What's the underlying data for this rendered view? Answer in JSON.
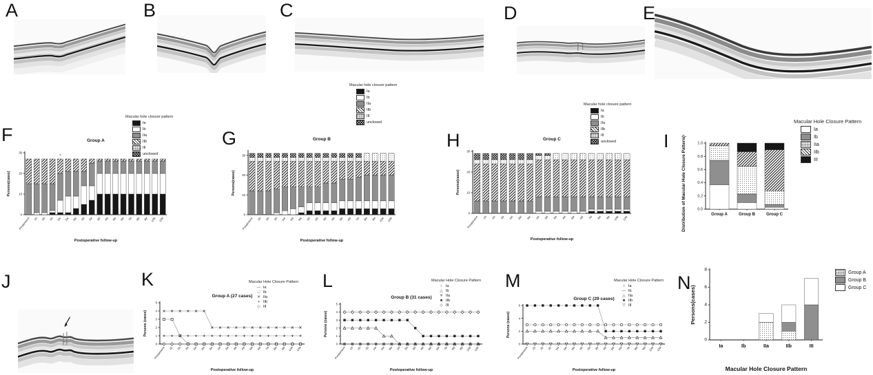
{
  "figure": {
    "background": "#ffffff"
  },
  "panels": {
    "A": {
      "letter": "A"
    },
    "B": {
      "letter": "B"
    },
    "C": {
      "letter": "C"
    },
    "D": {
      "letter": "D"
    },
    "E": {
      "letter": "E"
    },
    "F": {
      "letter": "F"
    },
    "G": {
      "letter": "G"
    },
    "H": {
      "letter": "H"
    },
    "I": {
      "letter": "I"
    },
    "J": {
      "letter": "J"
    },
    "K": {
      "letter": "K"
    },
    "L": {
      "letter": "L"
    },
    "M": {
      "letter": "M"
    },
    "N": {
      "letter": "N"
    }
  },
  "followup_categories": [
    "Preoperative",
    "1D",
    "2D",
    "3D",
    "1W",
    "2W",
    "3W",
    "1M",
    "2M",
    "3M",
    "4M",
    "5M",
    "6M",
    "7M",
    "8M",
    "9M",
    "10M",
    "12M"
  ],
  "colors": {
    "black": "#161616",
    "gray": "#8f8f8f",
    "hatch_line": "#1a1a1a",
    "axis": "#111111"
  },
  "chart_data": [
    {
      "panel": "F",
      "type": "bar",
      "stacked": true,
      "title": "Group A",
      "ylabel": "Persons(cases)",
      "xlabel": "Postoperative follow-up",
      "legend_title": "Macular hole closure pattern",
      "ylim": [
        0,
        30
      ],
      "yticks": [
        0,
        10,
        20,
        30
      ],
      "categories_ref": "followup",
      "annotations": [
        {
          "text": "*",
          "x_index": 4
        }
      ],
      "series": [
        {
          "name": "Ia",
          "pattern": "black",
          "values": [
            0,
            0,
            0,
            1,
            1,
            1,
            3,
            5,
            7,
            10,
            10,
            10,
            10,
            10,
            10,
            10,
            10,
            10
          ]
        },
        {
          "name": "Ib",
          "pattern": "white",
          "values": [
            0,
            1,
            1,
            1,
            6,
            8,
            6,
            9,
            7,
            10,
            10,
            10,
            10,
            10,
            10,
            10,
            10,
            10
          ]
        },
        {
          "name": "IIa",
          "pattern": "gray",
          "values": [
            15,
            14,
            14,
            13,
            13,
            12,
            12,
            7,
            11,
            6,
            6,
            6,
            6,
            6,
            6,
            6,
            6,
            6
          ]
        },
        {
          "name": "IIb",
          "pattern": "hatch",
          "values": [
            12,
            12,
            12,
            12,
            7,
            6,
            6,
            6,
            2,
            1,
            1,
            1,
            1,
            1,
            1,
            1,
            1,
            1
          ]
        },
        {
          "name": "III",
          "pattern": "dots",
          "values": [
            0,
            0,
            0,
            0,
            0,
            0,
            0,
            0,
            0,
            0,
            0,
            0,
            0,
            0,
            0,
            0,
            0,
            0
          ]
        },
        {
          "name": "unclosed",
          "pattern": "crosshatch",
          "values": [
            0,
            0,
            0,
            0,
            0,
            0,
            0,
            0,
            0,
            0,
            0,
            0,
            0,
            0,
            0,
            0,
            0,
            0
          ]
        }
      ]
    },
    {
      "panel": "G",
      "type": "bar",
      "stacked": true,
      "title": "Group B",
      "ylabel": "Persons(cases)",
      "xlabel": "Postoperative follow-up",
      "legend_title": "Macular hole closure pattern",
      "ylim": [
        0,
        32
      ],
      "yticks": [
        0,
        10,
        20,
        30
      ],
      "categories_ref": "followup",
      "series": [
        {
          "name": "Ia",
          "pattern": "black",
          "values": [
            0,
            0,
            0,
            0,
            0,
            0,
            1,
            2,
            2,
            2,
            2,
            3,
            3,
            3,
            3,
            3,
            3,
            3
          ]
        },
        {
          "name": "Ib",
          "pattern": "white",
          "values": [
            0,
            0,
            0,
            1,
            2,
            3,
            3,
            4,
            4,
            4,
            4,
            4,
            4,
            4,
            4,
            4,
            4,
            4
          ]
        },
        {
          "name": "IIa",
          "pattern": "gray",
          "values": [
            12,
            12,
            12,
            12,
            12,
            11,
            10,
            8,
            8,
            10,
            10,
            11,
            11,
            12,
            13,
            13,
            13,
            13
          ]
        },
        {
          "name": "IIb",
          "pattern": "hatch",
          "values": [
            15,
            15,
            15,
            14,
            13,
            13,
            13,
            13,
            13,
            11,
            11,
            9,
            9,
            8,
            7,
            7,
            7,
            7
          ]
        },
        {
          "name": "III",
          "pattern": "dots",
          "values": [
            2,
            2,
            2,
            2,
            2,
            2,
            2,
            2,
            2,
            2,
            2,
            2,
            2,
            2,
            4,
            4,
            4,
            4
          ]
        },
        {
          "name": "unclosed",
          "pattern": "crosshatch",
          "values": [
            2,
            2,
            2,
            2,
            2,
            2,
            2,
            2,
            2,
            2,
            2,
            2,
            2,
            2,
            0,
            0,
            0,
            0
          ]
        }
      ]
    },
    {
      "panel": "H",
      "type": "bar",
      "stacked": true,
      "title": "Group C",
      "ylabel": "Persons(cases)",
      "xlabel": "Postoperative follow-up",
      "legend_title": "Macular hole closure pattern",
      "ylim": [
        0,
        30
      ],
      "yticks": [
        0,
        10,
        20,
        30
      ],
      "categories_ref": "followup",
      "series": [
        {
          "name": "Ia",
          "pattern": "black",
          "values": [
            0,
            0,
            0,
            0,
            0,
            0,
            0,
            0,
            0,
            0,
            0,
            0,
            0,
            1,
            1,
            1,
            1,
            1
          ]
        },
        {
          "name": "Ib",
          "pattern": "white",
          "values": [
            0,
            0,
            0,
            0,
            0,
            0,
            0,
            1,
            1,
            1,
            1,
            1,
            1,
            1,
            1,
            1,
            1,
            1
          ]
        },
        {
          "name": "IIa",
          "pattern": "gray",
          "values": [
            6,
            6,
            6,
            6,
            6,
            6,
            6,
            7,
            7,
            7,
            7,
            7,
            7,
            6,
            6,
            6,
            6,
            6
          ]
        },
        {
          "name": "IIb",
          "pattern": "hatch",
          "values": [
            18,
            18,
            18,
            18,
            18,
            18,
            18,
            18,
            18,
            18,
            18,
            18,
            18,
            18,
            18,
            18,
            18,
            18
          ]
        },
        {
          "name": "III",
          "pattern": "dots",
          "values": [
            2,
            2,
            2,
            2,
            2,
            2,
            2,
            2,
            2,
            3,
            3,
            3,
            3,
            3,
            3,
            3,
            3,
            3
          ]
        },
        {
          "name": "unclosed",
          "pattern": "crosshatch",
          "values": [
            3,
            3,
            3,
            3,
            3,
            3,
            3,
            1,
            1,
            0,
            0,
            0,
            0,
            0,
            0,
            0,
            0,
            0
          ]
        }
      ]
    },
    {
      "panel": "I",
      "type": "bar",
      "stacked": true,
      "font_scale": 1.3,
      "x_bold": true,
      "title": "",
      "ylabel": "Distribution of Macular Hole Closure Pattern(×100%)",
      "xlabel": "",
      "legend_title": "Macular Hole Closure Pattern",
      "ylim": [
        0,
        1.0
      ],
      "yticks": [
        0.0,
        0.2,
        0.4,
        0.6,
        0.8,
        1.0
      ],
      "tick_decimals": 1,
      "categories": [
        "Group A",
        "Group B",
        "Group C"
      ],
      "series": [
        {
          "name": "Ia",
          "pattern": "white",
          "values": [
            0.37,
            0.1,
            0.03
          ]
        },
        {
          "name": "Ib",
          "pattern": "gray",
          "values": [
            0.37,
            0.13,
            0.04
          ]
        },
        {
          "name": "IIa",
          "pattern": "dots",
          "values": [
            0.22,
            0.42,
            0.21
          ]
        },
        {
          "name": "IIb",
          "pattern": "hatch",
          "values": [
            0.04,
            0.22,
            0.62
          ]
        },
        {
          "name": "III",
          "pattern": "black",
          "values": [
            0.0,
            0.13,
            0.1
          ]
        }
      ]
    },
    {
      "panel": "K",
      "type": "line",
      "title": "Group A (27 cases)",
      "ylabel": "Persons (cases)",
      "xlabel": "Postoperative follow-up",
      "legend_title": "Macular Hole Closure Pattern",
      "ylim": [
        0,
        5
      ],
      "yticks": [
        0,
        1,
        2,
        3,
        4,
        5
      ],
      "categories_ref": "followup",
      "series": [
        {
          "name": "Ia",
          "marker": "dash",
          "values": [
            0,
            0,
            0,
            0,
            0,
            0,
            0,
            0,
            0,
            0,
            0,
            0,
            0,
            0,
            0,
            0,
            0,
            0
          ]
        },
        {
          "name": "Ib",
          "marker": "square-open",
          "values": [
            3,
            3,
            1,
            0,
            0,
            0,
            0,
            0,
            0,
            0,
            0,
            0,
            0,
            0,
            0,
            0,
            0,
            0
          ]
        },
        {
          "name": "IIa",
          "marker": "x",
          "values": [
            4,
            4,
            4,
            4,
            4,
            4,
            2,
            2,
            2,
            2,
            2,
            2,
            2,
            2,
            2,
            2,
            2,
            2
          ]
        },
        {
          "name": "IIb",
          "marker": "plus",
          "values": [
            1,
            1,
            1,
            1,
            1,
            1,
            1,
            1,
            1,
            1,
            1,
            1,
            1,
            1,
            1,
            1,
            1,
            1
          ]
        },
        {
          "name": "III",
          "marker": "diamond-open",
          "values": [
            0,
            0,
            0,
            0,
            0,
            0,
            0,
            0,
            0,
            0,
            0,
            0,
            0,
            0,
            0,
            0,
            0,
            0
          ]
        }
      ]
    },
    {
      "panel": "L",
      "type": "line",
      "title": "Group B (31 cases)",
      "ylabel": "Persons (cases)",
      "xlabel": "Postoperative follow-up",
      "legend_title": "Macular Hole Closure Pattern",
      "ylim": [
        0,
        5
      ],
      "yticks": [
        0,
        1,
        2,
        3,
        4,
        5
      ],
      "categories_ref": "followup",
      "series": [
        {
          "name": "Ia",
          "marker": "circle-open",
          "values": [
            0,
            0,
            0,
            0,
            0,
            0,
            0,
            0,
            0,
            0,
            0,
            0,
            0,
            0,
            0,
            0,
            0,
            0
          ]
        },
        {
          "name": "Ib",
          "marker": "triangle-open",
          "values": [
            2,
            2,
            2,
            2,
            2,
            1,
            1,
            0,
            0,
            0,
            0,
            0,
            0,
            0,
            0,
            0,
            0,
            0
          ]
        },
        {
          "name": "IIa",
          "marker": "x",
          "values": [
            0,
            0,
            0,
            0,
            0,
            0,
            0,
            0,
            0,
            0,
            0,
            0,
            0,
            0,
            0,
            0,
            0,
            0
          ]
        },
        {
          "name": "IIb",
          "marker": "square-filled",
          "values": [
            3,
            3,
            3,
            3,
            3,
            3,
            3,
            3,
            3,
            2,
            1,
            1,
            1,
            1,
            1,
            1,
            1,
            1
          ]
        },
        {
          "name": "III",
          "marker": "diamond-open",
          "values": [
            4,
            4,
            4,
            4,
            4,
            4,
            4,
            4,
            4,
            4,
            4,
            4,
            4,
            4,
            4,
            4,
            4,
            4
          ]
        }
      ]
    },
    {
      "panel": "M",
      "type": "line",
      "title": "Group C (29 cases)",
      "ylabel": "Persons (cases)",
      "xlabel": "Postoperative follow-up",
      "legend_title": "Macular Hole Closure Pattern",
      "ylim": [
        0,
        6
      ],
      "yticks": [
        0,
        2,
        4,
        6
      ],
      "categories_ref": "followup",
      "series": [
        {
          "name": "Ia",
          "marker": "circle-open",
          "values": [
            3,
            3,
            3,
            3,
            3,
            3,
            3,
            3,
            3,
            3,
            3,
            3,
            3,
            3,
            3,
            3,
            3,
            3
          ]
        },
        {
          "name": "Ib",
          "marker": "dash",
          "values": [
            0,
            0,
            0,
            0,
            0,
            0,
            0,
            0,
            0,
            0,
            0,
            0,
            0,
            0,
            0,
            0,
            0,
            0
          ]
        },
        {
          "name": "IIa",
          "marker": "triangle-open",
          "values": [
            2,
            2,
            2,
            2,
            2,
            2,
            2,
            2,
            2,
            2,
            1,
            1,
            1,
            1,
            1,
            1,
            1,
            1
          ]
        },
        {
          "name": "IIb",
          "marker": "square-filled",
          "values": [
            6,
            6,
            6,
            6,
            6,
            6,
            6,
            6,
            6,
            6,
            2,
            2,
            2,
            2,
            2,
            2,
            2,
            2
          ]
        },
        {
          "name": "III",
          "marker": "triangle-down-open",
          "values": [
            0,
            0,
            0,
            0,
            0,
            0,
            0,
            0,
            0,
            0,
            0,
            0,
            0,
            0,
            0,
            0,
            0,
            0
          ]
        }
      ]
    },
    {
      "panel": "N",
      "type": "bar",
      "stacked": true,
      "font_scale": 1.55,
      "x_bold": true,
      "bar_frac": 0.62,
      "title": "",
      "ylabel": "Persons(cases)",
      "xlabel": "Macular Hole Closure Pattern",
      "legend_title": "",
      "ylim": [
        0,
        8
      ],
      "yticks": [
        0,
        2,
        4,
        6,
        8
      ],
      "categories": [
        "Ia",
        "Ib",
        "IIa",
        "IIb",
        "III"
      ],
      "series": [
        {
          "name": "Group A",
          "pattern": "dots",
          "values": [
            0,
            0,
            2,
            1,
            0
          ]
        },
        {
          "name": "Group B",
          "pattern": "gray",
          "values": [
            0,
            0,
            0,
            1,
            4
          ]
        },
        {
          "name": "Group C",
          "pattern": "white",
          "values": [
            0,
            0,
            1,
            2,
            3
          ]
        }
      ]
    }
  ]
}
